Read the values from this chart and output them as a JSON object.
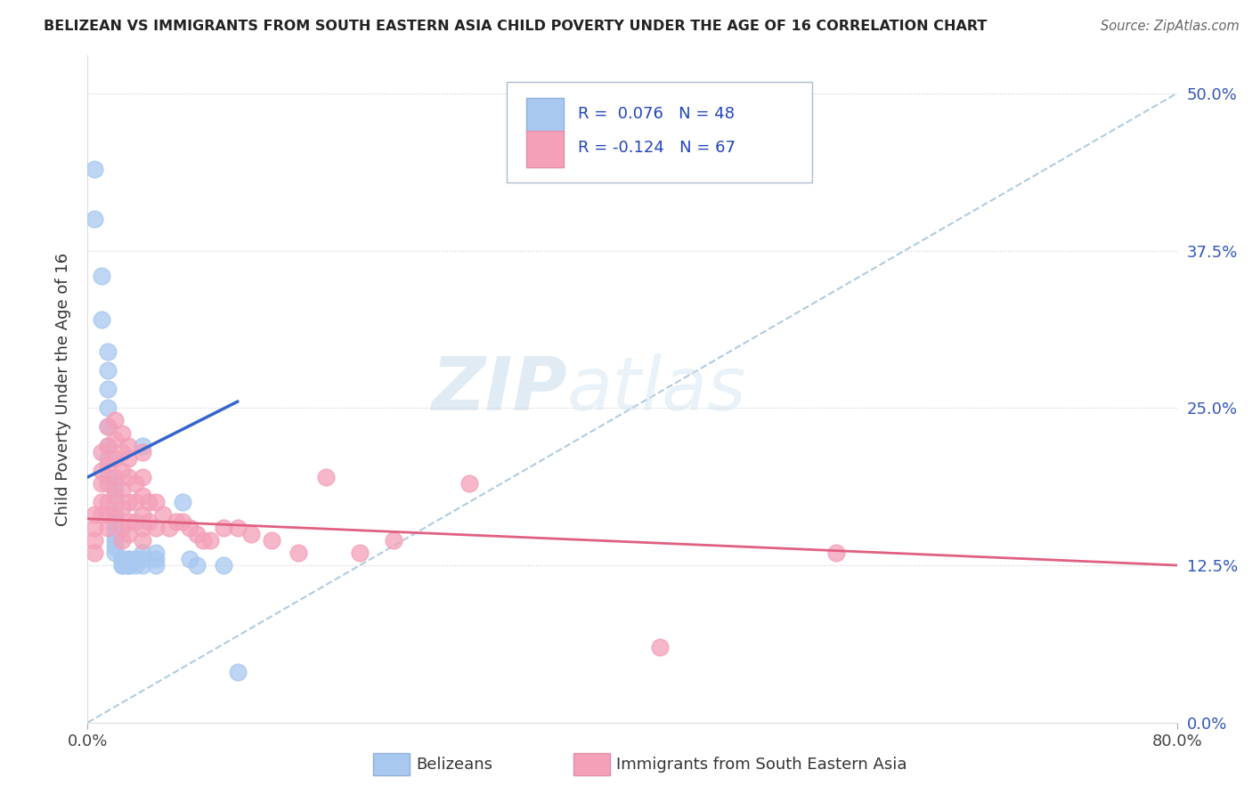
{
  "title": "BELIZEAN VS IMMIGRANTS FROM SOUTH EASTERN ASIA CHILD POVERTY UNDER THE AGE OF 16 CORRELATION CHART",
  "source": "Source: ZipAtlas.com",
  "ylabel": "Child Poverty Under the Age of 16",
  "xlim": [
    0.0,
    0.8
  ],
  "ylim": [
    0.0,
    0.53
  ],
  "yticks": [
    0.0,
    0.125,
    0.25,
    0.375,
    0.5
  ],
  "ytick_labels": [
    "0.0%",
    "12.5%",
    "25.0%",
    "37.5%",
    "50.0%"
  ],
  "xticks": [
    0.0,
    0.8
  ],
  "xtick_labels": [
    "0.0%",
    "80.0%"
  ],
  "blue_R": 0.076,
  "blue_N": 48,
  "pink_R": -0.124,
  "pink_N": 67,
  "blue_color": "#a8c8f0",
  "pink_color": "#f4a0b8",
  "blue_line_color": "#3366cc",
  "pink_line_color": "#e06080",
  "dashed_line_color": "#b0cce0",
  "legend_label_blue": "Belizeans",
  "legend_label_pink": "Immigrants from South Eastern Asia",
  "watermark_zip": "ZIP",
  "watermark_atlas": "atlas",
  "blue_line_x": [
    0.0,
    0.11
  ],
  "blue_line_y": [
    0.195,
    0.255
  ],
  "pink_line_x": [
    0.0,
    0.8
  ],
  "pink_line_y": [
    0.162,
    0.125
  ],
  "dash_line_x": [
    0.0,
    0.8
  ],
  "dash_line_y": [
    0.0,
    0.5
  ],
  "blue_scatter_x": [
    0.005,
    0.005,
    0.01,
    0.01,
    0.015,
    0.015,
    0.015,
    0.015,
    0.015,
    0.015,
    0.015,
    0.015,
    0.02,
    0.02,
    0.02,
    0.02,
    0.02,
    0.02,
    0.02,
    0.02,
    0.02,
    0.02,
    0.025,
    0.025,
    0.025,
    0.025,
    0.025,
    0.025,
    0.03,
    0.03,
    0.03,
    0.03,
    0.03,
    0.035,
    0.035,
    0.035,
    0.04,
    0.04,
    0.04,
    0.04,
    0.05,
    0.05,
    0.05,
    0.07,
    0.075,
    0.08,
    0.1,
    0.11
  ],
  "blue_scatter_y": [
    0.44,
    0.4,
    0.355,
    0.32,
    0.295,
    0.28,
    0.265,
    0.25,
    0.235,
    0.22,
    0.21,
    0.195,
    0.19,
    0.185,
    0.175,
    0.165,
    0.16,
    0.155,
    0.15,
    0.145,
    0.14,
    0.135,
    0.13,
    0.13,
    0.13,
    0.13,
    0.125,
    0.125,
    0.125,
    0.13,
    0.125,
    0.125,
    0.13,
    0.13,
    0.13,
    0.125,
    0.135,
    0.13,
    0.125,
    0.22,
    0.135,
    0.13,
    0.125,
    0.175,
    0.13,
    0.125,
    0.125,
    0.04
  ],
  "pink_scatter_x": [
    0.005,
    0.005,
    0.005,
    0.005,
    0.01,
    0.01,
    0.01,
    0.01,
    0.01,
    0.015,
    0.015,
    0.015,
    0.015,
    0.015,
    0.015,
    0.015,
    0.02,
    0.02,
    0.02,
    0.02,
    0.02,
    0.02,
    0.025,
    0.025,
    0.025,
    0.025,
    0.025,
    0.025,
    0.025,
    0.03,
    0.03,
    0.03,
    0.03,
    0.03,
    0.03,
    0.035,
    0.035,
    0.035,
    0.04,
    0.04,
    0.04,
    0.04,
    0.04,
    0.04,
    0.045,
    0.045,
    0.05,
    0.05,
    0.055,
    0.06,
    0.065,
    0.07,
    0.075,
    0.08,
    0.085,
    0.09,
    0.1,
    0.11,
    0.12,
    0.135,
    0.155,
    0.175,
    0.2,
    0.225,
    0.28,
    0.42,
    0.55
  ],
  "pink_scatter_y": [
    0.165,
    0.155,
    0.145,
    0.135,
    0.215,
    0.2,
    0.19,
    0.175,
    0.165,
    0.235,
    0.22,
    0.205,
    0.19,
    0.175,
    0.165,
    0.155,
    0.24,
    0.225,
    0.21,
    0.195,
    0.18,
    0.165,
    0.23,
    0.215,
    0.2,
    0.185,
    0.17,
    0.155,
    0.145,
    0.22,
    0.21,
    0.195,
    0.175,
    0.16,
    0.15,
    0.19,
    0.175,
    0.16,
    0.215,
    0.195,
    0.18,
    0.165,
    0.155,
    0.145,
    0.175,
    0.16,
    0.175,
    0.155,
    0.165,
    0.155,
    0.16,
    0.16,
    0.155,
    0.15,
    0.145,
    0.145,
    0.155,
    0.155,
    0.15,
    0.145,
    0.135,
    0.195,
    0.135,
    0.145,
    0.19,
    0.06,
    0.135
  ]
}
